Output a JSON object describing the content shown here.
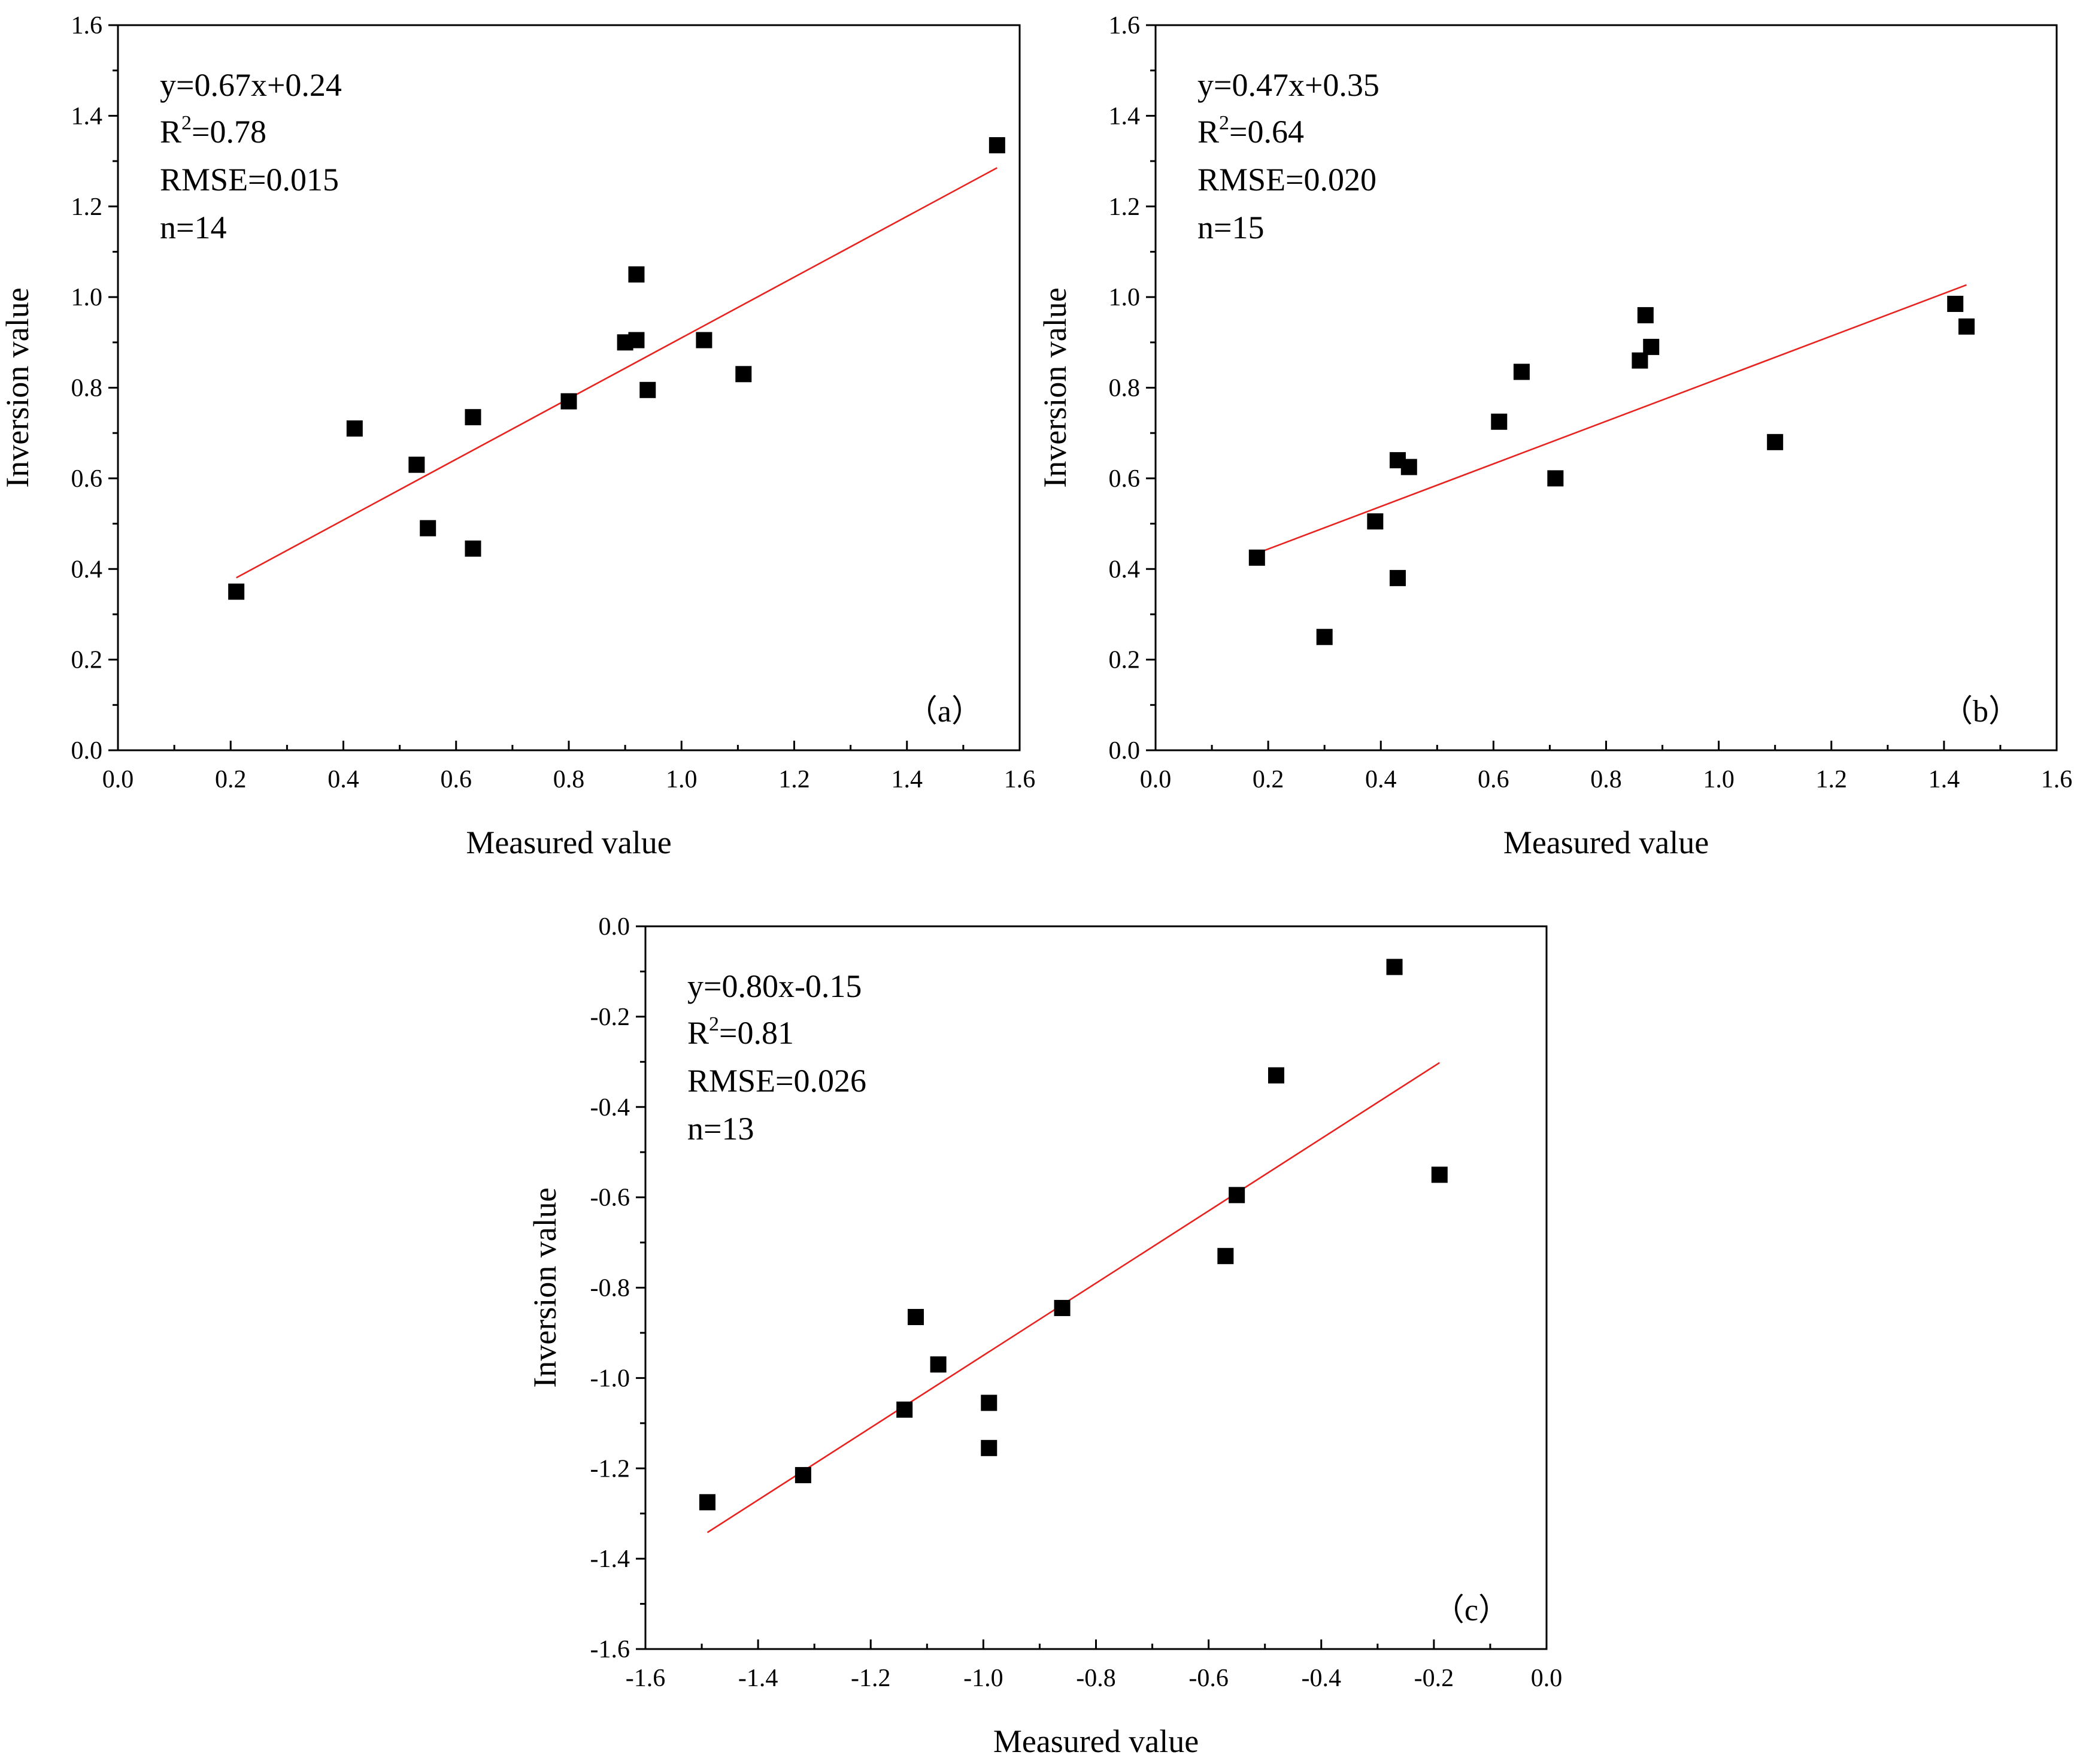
{
  "chart_data": [
    {
      "type": "scatter",
      "panel": "(a)",
      "xlabel": "Measured value",
      "ylabel": "Inversion value",
      "xlim": [
        0.0,
        1.6
      ],
      "ylim": [
        0.0,
        1.6
      ],
      "xticks": [
        "0.0",
        "0.2",
        "0.4",
        "0.6",
        "0.8",
        "1.0",
        "1.2",
        "1.4",
        "1.6"
      ],
      "yticks": [
        "0.0",
        "0.2",
        "0.4",
        "0.6",
        "0.8",
        "1.0",
        "1.2",
        "1.4",
        "1.6"
      ],
      "annotations": {
        "equation": "y=0.67x+0.24",
        "r2_prefix": "R",
        "r2_sup": "2",
        "r2_value": "=0.78",
        "rmse": "RMSE=0.015",
        "n": "n=14"
      },
      "fit": {
        "slope": 0.67,
        "intercept": 0.24,
        "x_range": [
          0.21,
          1.56
        ]
      },
      "points": [
        [
          0.21,
          0.35
        ],
        [
          0.42,
          0.71
        ],
        [
          0.53,
          0.63
        ],
        [
          0.55,
          0.49
        ],
        [
          0.63,
          0.735
        ],
        [
          0.63,
          0.445
        ],
        [
          0.8,
          0.77
        ],
        [
          0.9,
          0.9
        ],
        [
          0.92,
          0.905
        ],
        [
          0.92,
          1.05
        ],
        [
          0.94,
          0.795
        ],
        [
          1.04,
          0.905
        ],
        [
          1.11,
          0.83
        ],
        [
          1.56,
          1.335
        ]
      ]
    },
    {
      "type": "scatter",
      "panel": "(b)",
      "xlabel": "Measured value",
      "ylabel": "Inversion value",
      "xlim": [
        0.0,
        1.6
      ],
      "ylim": [
        0.0,
        1.6
      ],
      "xticks": [
        "0.0",
        "0.2",
        "0.4",
        "0.6",
        "0.8",
        "1.0",
        "1.2",
        "1.4",
        "1.6"
      ],
      "yticks": [
        "0.0",
        "0.2",
        "0.4",
        "0.6",
        "0.8",
        "1.0",
        "1.2",
        "1.4",
        "1.6"
      ],
      "annotations": {
        "equation": "y=0.47x+0.35",
        "r2_prefix": "R",
        "r2_sup": "2",
        "r2_value": "=0.64",
        "rmse": "RMSE=0.020",
        "n": "n=15"
      },
      "fit": {
        "slope": 0.47,
        "intercept": 0.35,
        "x_range": [
          0.18,
          1.44
        ]
      },
      "points": [
        [
          0.18,
          0.425
        ],
        [
          0.3,
          0.25
        ],
        [
          0.39,
          0.505
        ],
        [
          0.43,
          0.64
        ],
        [
          0.43,
          0.38
        ],
        [
          0.45,
          0.625
        ],
        [
          0.61,
          0.725
        ],
        [
          0.65,
          0.835
        ],
        [
          0.71,
          0.6
        ],
        [
          0.86,
          0.86
        ],
        [
          0.87,
          0.96
        ],
        [
          0.88,
          0.89
        ],
        [
          1.1,
          0.68
        ],
        [
          1.42,
          0.985
        ],
        [
          1.44,
          0.935
        ]
      ]
    },
    {
      "type": "scatter",
      "panel": "(c)",
      "xlabel": "Measured value",
      "ylabel": "Inversion value",
      "xlim": [
        -1.6,
        0.0
      ],
      "ylim": [
        -1.6,
        0.0
      ],
      "xticks": [
        "-1.6",
        "-1.4",
        "-1.2",
        "-1.0",
        "-0.8",
        "-0.6",
        "-0.4",
        "-0.2",
        "0.0"
      ],
      "yticks": [
        "-1.6",
        "-1.4",
        "-1.2",
        "-1.0",
        "-0.8",
        "-0.6",
        "-0.4",
        "-0.2",
        "0.0"
      ],
      "annotations": {
        "equation": "y=0.80x-0.15",
        "r2_prefix": "R",
        "r2_sup": "2",
        "r2_value": "=0.81",
        "rmse": "RMSE=0.026",
        "n": "n=13"
      },
      "fit": {
        "slope": 0.8,
        "intercept": -0.15,
        "x_range": [
          -1.49,
          -0.19
        ]
      },
      "points": [
        [
          -1.49,
          -1.275
        ],
        [
          -1.32,
          -1.215
        ],
        [
          -1.14,
          -1.07
        ],
        [
          -1.12,
          -0.865
        ],
        [
          -1.08,
          -0.97
        ],
        [
          -0.99,
          -1.055
        ],
        [
          -0.99,
          -1.155
        ],
        [
          -0.86,
          -0.845
        ],
        [
          -0.57,
          -0.73
        ],
        [
          -0.55,
          -0.595
        ],
        [
          -0.48,
          -0.33
        ],
        [
          -0.27,
          -0.09
        ],
        [
          -0.19,
          -0.55
        ]
      ]
    }
  ]
}
